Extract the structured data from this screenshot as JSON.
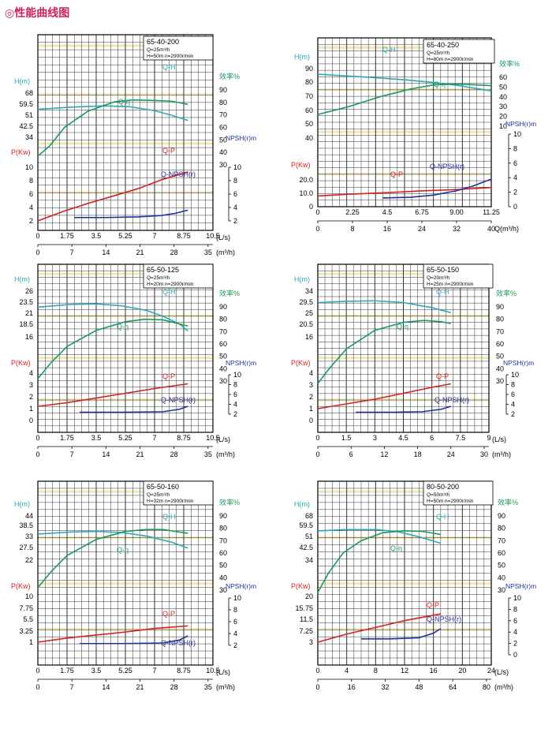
{
  "page": {
    "title": "◎性能曲线图"
  },
  "colors": {
    "h": "#2ba7ba",
    "eff": "#1a9a5a",
    "p": "#d42020",
    "npsh": "#2030a0",
    "grid": "#333333",
    "hilite": "#e6d47a"
  },
  "chart_data": [
    {
      "type": "line",
      "model": "65-40-200",
      "spec": [
        "Q=25m³/h",
        "H=50m  n=2900r/min"
      ],
      "h_label": "H(m)",
      "eff_label": "效率%",
      "p_label": "P(Kw)",
      "npsh_label": "NPSH(r)m",
      "h_ticks": [
        "68",
        "59.5",
        "51",
        "42.5",
        "34"
      ],
      "eff_ticks": [
        "90",
        "80",
        "70",
        "60",
        "50",
        "40",
        "30"
      ],
      "p_ticks": [
        "10",
        "8",
        "6",
        "4",
        "2"
      ],
      "npsh_ticks": [
        "10",
        "8",
        "6",
        "4",
        "2"
      ],
      "x_ls": [
        "0",
        "1.75",
        "3.5",
        "5.25",
        "7",
        "8.75",
        "10.5"
      ],
      "x_ls_unit": "(L/s)",
      "x_m3h": [
        "0",
        "7",
        "14",
        "21",
        "28",
        "35"
      ],
      "x_m3h_unit": "(m³/h)",
      "series": [
        {
          "name": "Q-H",
          "x": [
            0,
            2,
            4,
            5.5,
            7,
            8,
            9
          ],
          "y": [
            55.5,
            57.2,
            58.2,
            57.5,
            54.5,
            51,
            47
          ]
        },
        {
          "name": "Q-η",
          "x": [
            0,
            0.7,
            1.6,
            3,
            4.6,
            5.7,
            7.1,
            8,
            9
          ],
          "y": [
            37,
            45,
            60,
            73,
            80.5,
            82,
            81.5,
            81,
            78.5
          ]
        },
        {
          "name": "Q-P",
          "x": [
            0,
            1.5,
            3,
            4.5,
            6,
            7.5,
            9
          ],
          "y": [
            2,
            3.4,
            4.6,
            5.7,
            6.8,
            8.2,
            9.3
          ]
        },
        {
          "name": "Q-NPSH(r)",
          "x": [
            2.2,
            4,
            6,
            7.4,
            8.2,
            9
          ],
          "y": [
            2.5,
            2.5,
            2.6,
            2.8,
            3.1,
            3.6
          ]
        }
      ]
    },
    {
      "type": "line",
      "model": "65-40-250",
      "spec": [
        "Q=25m³/h",
        "H=80m  n=2900r/min"
      ],
      "h_label": "H(m)",
      "eff_label": "效率%",
      "p_label": "P(Kw)",
      "npsh_label": "NPSH(r)m",
      "h_ticks": [
        "90",
        "80",
        "70",
        "60",
        "50",
        "40"
      ],
      "eff_ticks": [
        "60",
        "50",
        "40",
        "30",
        "20",
        "10"
      ],
      "p_ticks": [
        "20.0",
        "10.0",
        "0"
      ],
      "npsh_ticks": [
        "10",
        "8",
        "6",
        "4",
        "2",
        "0"
      ],
      "x_ls": [
        "0",
        "2.25",
        "4.5",
        "6.75",
        "9.00",
        "11.25"
      ],
      "x_ls_unit": "",
      "x_m3h": [
        "0",
        "8",
        "16",
        "24",
        "32",
        "40"
      ],
      "x_m3h_unit": "Q(m³/h)",
      "series": [
        {
          "name": "Q-H",
          "x": [
            0,
            3,
            5.6,
            7.5,
            9,
            11.25
          ],
          "y": [
            86,
            84,
            82,
            80,
            78,
            74
          ]
        },
        {
          "name": "Q-η",
          "x": [
            0,
            2,
            4,
            6,
            7.6,
            9,
            10,
            11.25
          ],
          "y": [
            22,
            30,
            40,
            48,
            52.5,
            53,
            52.5,
            51.5
          ]
        },
        {
          "name": "Q-P",
          "x": [
            0,
            2,
            4.5,
            6.75,
            9,
            11.25
          ],
          "y": [
            8,
            9.3,
            10.5,
            11.8,
            12.8,
            14.3
          ]
        },
        {
          "name": "Q-NPSH(r)",
          "x": [
            4.2,
            6,
            7.5,
            9,
            10,
            11.25
          ],
          "y": [
            1.2,
            1.3,
            1.6,
            2.2,
            2.8,
            3.8
          ]
        }
      ]
    },
    {
      "type": "line",
      "model": "65-50-125",
      "spec": [
        "Q=25m³/h",
        "H=20m  n=2900r/min"
      ],
      "h_label": "H(m)",
      "eff_label": "效率%",
      "p_label": "P(Kw)",
      "npsh_label": "NPSH(r)m",
      "h_ticks": [
        "26",
        "23.5",
        "21",
        "18.5",
        "16"
      ],
      "eff_ticks": [
        "90",
        "80",
        "70",
        "60",
        "50",
        "40",
        "30"
      ],
      "p_ticks": [
        "4",
        "3",
        "2",
        "1",
        "0"
      ],
      "npsh_ticks": [
        "10",
        "8",
        "6",
        "4",
        "2"
      ],
      "x_ls": [
        "0",
        "1.75",
        "3.5",
        "5.25",
        "7",
        "8.75",
        "10.5"
      ],
      "x_ls_unit": "(L/s)",
      "x_m3h": [
        "0",
        "7",
        "14",
        "21",
        "28",
        "35"
      ],
      "x_m3h_unit": "(m³/h)",
      "series": [
        {
          "name": "Q-H",
          "x": [
            0,
            2,
            3.5,
            5,
            6.5,
            7.5,
            8.5,
            9
          ],
          "y": [
            22.5,
            23.1,
            23.2,
            22.8,
            21.8,
            20.5,
            18.8,
            17.3
          ]
        },
        {
          "name": "Q-η",
          "x": [
            0,
            0.8,
            1.75,
            3.5,
            5.25,
            6.4,
            7.5,
            9
          ],
          "y": [
            32,
            45,
            58,
            71,
            78,
            80,
            79.5,
            74.5
          ]
        },
        {
          "name": "Q-P",
          "x": [
            0,
            1.75,
            3.5,
            5.25,
            7,
            9
          ],
          "y": [
            1.2,
            1.5,
            1.9,
            2.3,
            2.7,
            3.1
          ]
        },
        {
          "name": "Q-NPSH(r)",
          "x": [
            2.5,
            5,
            7.5,
            8.5,
            9
          ],
          "y": [
            2.4,
            2.4,
            2.5,
            3.0,
            3.6
          ]
        }
      ]
    },
    {
      "type": "line",
      "model": "65-50-150",
      "spec": [
        "Q=20m³/h",
        "H=25m  n=2900r/min"
      ],
      "h_label": "H(m)",
      "eff_label": "效率%",
      "p_label": "P(Kw)",
      "npsh_label": "NPSH(r)m",
      "h_ticks": [
        "34",
        "29.5",
        "25",
        "20.5",
        "16"
      ],
      "eff_ticks": [
        "90",
        "80",
        "70",
        "60",
        "50",
        "40",
        "30"
      ],
      "p_ticks": [
        "4",
        "3",
        "2",
        "1",
        "0"
      ],
      "npsh_ticks": [
        "10",
        "8",
        "6",
        "4",
        "2"
      ],
      "x_ls": [
        "0",
        "1.5",
        "3",
        "4.5",
        "6",
        "7.5",
        "9"
      ],
      "x_ls_unit": "(L/s)",
      "x_m3h": [
        "0",
        "6",
        "12",
        "18",
        "24",
        "30"
      ],
      "x_m3h_unit": "(m³/h)",
      "series": [
        {
          "name": "Q-H",
          "x": [
            0,
            1.5,
            3,
            4.5,
            6,
            7
          ],
          "y": [
            29.5,
            30,
            30.2,
            29.5,
            27.5,
            25.5
          ]
        },
        {
          "name": "Q-η",
          "x": [
            0,
            0.6,
            1.5,
            3,
            4.5,
            5.6,
            6.5,
            7
          ],
          "y": [
            28,
            40,
            56,
            71,
            77.5,
            79,
            78,
            76.5
          ]
        },
        {
          "name": "Q-P",
          "x": [
            0,
            1.5,
            3,
            4.5,
            6,
            7
          ],
          "y": [
            1.0,
            1.4,
            1.8,
            2.3,
            2.8,
            3.1
          ]
        },
        {
          "name": "Q-NPSH(r)",
          "x": [
            2,
            4,
            5.5,
            6.5,
            7
          ],
          "y": [
            2.4,
            2.4,
            2.5,
            3.0,
            3.6
          ]
        }
      ]
    },
    {
      "type": "line",
      "model": "65-50-160",
      "spec": [
        "Q=25m³/h",
        "H=32m  n=2900r/min"
      ],
      "h_label": "H(m)",
      "eff_label": "效率%",
      "p_label": "P(Kw)",
      "npsh_label": "NPSH(r)m",
      "h_ticks": [
        "44",
        "38.5",
        "33",
        "27.5",
        "22"
      ],
      "eff_ticks": [
        "90",
        "80",
        "70",
        "60",
        "50",
        "40",
        "30"
      ],
      "p_ticks": [
        "10",
        "7.75",
        "5.5",
        "3.25",
        "1"
      ],
      "npsh_ticks": [
        "10",
        "8",
        "6",
        "4",
        "2"
      ],
      "x_ls": [
        "0",
        "1.75",
        "3.5",
        "5.25",
        "7",
        "8.75",
        "10.5"
      ],
      "x_ls_unit": "(L/s)",
      "x_m3h": [
        "0",
        "7",
        "14",
        "21",
        "28",
        "35"
      ],
      "x_m3h_unit": "(m³/h)",
      "series": [
        {
          "name": "Q-H",
          "x": [
            0,
            2,
            3.5,
            5,
            6.5,
            8,
            9
          ],
          "y": [
            35,
            36,
            36.3,
            35.8,
            34,
            31,
            28
          ]
        },
        {
          "name": "Q-η",
          "x": [
            0,
            0.8,
            1.75,
            3.5,
            5.25,
            6.5,
            7.5,
            9
          ],
          "y": [
            32,
            45,
            58,
            71,
            77.5,
            79,
            79,
            76
          ]
        },
        {
          "name": "Q-P",
          "x": [
            0,
            1.75,
            3.5,
            5.25,
            7,
            9
          ],
          "y": [
            1.0,
            1.8,
            2.4,
            3.0,
            3.7,
            4.2
          ]
        },
        {
          "name": "Q-NPSH(r)",
          "x": [
            2.5,
            5,
            7.5,
            8.5,
            9
          ],
          "y": [
            2.3,
            2.3,
            2.4,
            2.9,
            3.6
          ]
        }
      ]
    },
    {
      "type": "line",
      "model": "80-50-200",
      "spec": [
        "Q=50m³/h",
        "H=50m  n=2900r/min"
      ],
      "h_label": "H(m)",
      "eff_label": "效率%",
      "p_label": "P(Kw)",
      "npsh_label": "NPSH(r)m",
      "h_ticks": [
        "68",
        "59.5",
        "51",
        "42.5",
        "34"
      ],
      "eff_ticks": [
        "90",
        "80",
        "70",
        "60",
        "50",
        "40",
        "30"
      ],
      "p_ticks": [
        "20",
        "15.75",
        "11.5",
        "7.25",
        "3"
      ],
      "npsh_ticks": [
        "10",
        "8",
        "6",
        "4",
        "2",
        "0"
      ],
      "x_ls": [
        "0",
        "4",
        "8",
        "12",
        "16",
        "20",
        "24"
      ],
      "x_ls_unit": "(L/s)",
      "x_m3h": [
        "0",
        "16",
        "32",
        "48",
        "64",
        "80"
      ],
      "x_m3h_unit": "(m³/h)",
      "series": [
        {
          "name": "Q-H",
          "x": [
            0,
            4,
            8,
            11,
            14,
            17
          ],
          "y": [
            56.5,
            57.5,
            57.5,
            56,
            52,
            47
          ]
        },
        {
          "name": "Q-η",
          "x": [
            0,
            1.5,
            3.5,
            6,
            9,
            12,
            14.5,
            17
          ],
          "y": [
            28,
            44,
            60,
            70,
            76.5,
            78,
            77.5,
            75
          ]
        },
        {
          "name": "Q-P",
          "x": [
            0,
            4,
            8,
            12,
            15,
            17
          ],
          "y": [
            3,
            6,
            8.5,
            11,
            12.5,
            13.5
          ]
        },
        {
          "name": "Q-NPSH(r)",
          "x": [
            6,
            10,
            14,
            16,
            17
          ],
          "y": [
            2.8,
            2.8,
            3.0,
            3.8,
            4.6
          ]
        }
      ]
    }
  ]
}
